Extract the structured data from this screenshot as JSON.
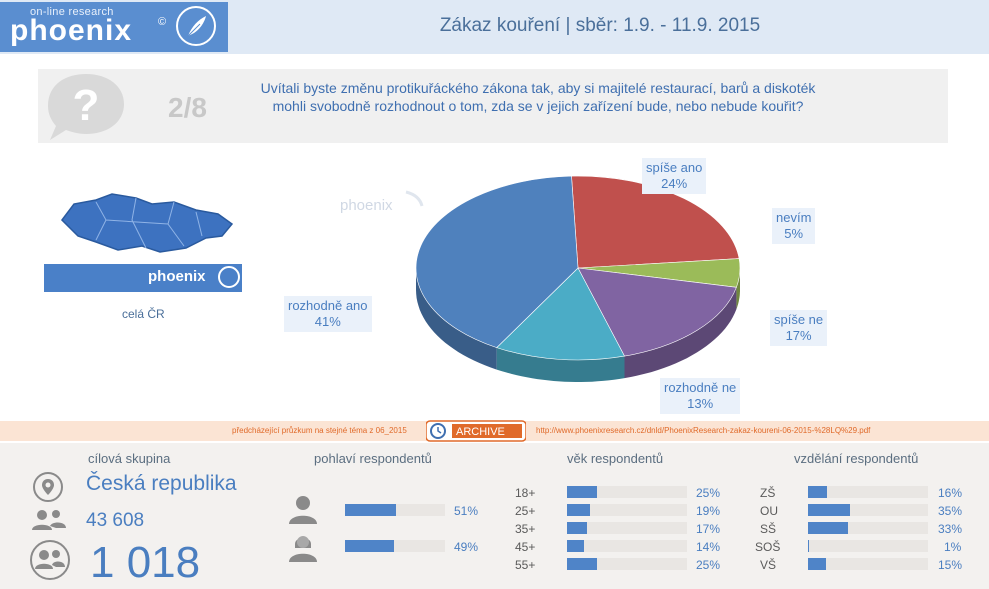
{
  "logo": {
    "small_text": "on-line research",
    "word": "phoenix",
    "mark": "©"
  },
  "title": "Zákaz kouření | sběr: 1.9. - 11.9. 2015",
  "question": {
    "number": "2/8",
    "text": "Uvítali byste změnu protikuřáckého zákona tak, aby si majitelé restaurací, barů a diskoték mohli  svobodně rozhodnout o tom, zda se v jejich zařízení bude, nebo nebude kouřit?"
  },
  "region": {
    "banner_text": "phoenix",
    "label": "celá ČR"
  },
  "chart_data": {
    "type": "pie",
    "categories": [
      "spíše ano",
      "nevím",
      "spíše ne",
      "rozhodně ne",
      "rozhodně ano"
    ],
    "values": [
      24,
      5,
      17,
      13,
      41
    ],
    "value_labels": [
      "24%",
      "5%",
      "17%",
      "13%",
      "41%"
    ],
    "colors": [
      "#c0504d",
      "#9bbb59",
      "#8064a2",
      "#4bacc6",
      "#4f81bd"
    ]
  },
  "archive": {
    "previous": "předcházející průzkum na stejné téma z 06_2015",
    "label": "ARCHIVE",
    "url": "http://www.phoenixresearch.cz/dnld/PhoenixResearch-zakaz-koureni-06-2015-%28LQ%29.pdf"
  },
  "target": {
    "title": "cílová skupina",
    "country": "Česká republika",
    "count": "43 608",
    "respondents": "1 018"
  },
  "gender": {
    "title": "pohlaví respondentů",
    "rows": [
      {
        "icon": "male-icon",
        "value": 51,
        "pct": "51%"
      },
      {
        "icon": "female-icon",
        "value": 49,
        "pct": "49%"
      }
    ]
  },
  "age": {
    "title": "věk respondentů",
    "rows": [
      {
        "label": "18+",
        "value": 25,
        "pct": "25%"
      },
      {
        "label": "25+",
        "value": 19,
        "pct": "19%"
      },
      {
        "label": "35+",
        "value": 17,
        "pct": "17%"
      },
      {
        "label": "45+",
        "value": 14,
        "pct": "14%"
      },
      {
        "label": "55+",
        "value": 25,
        "pct": "25%"
      }
    ]
  },
  "education": {
    "title": "vzdělání respondentů",
    "rows": [
      {
        "label": "ZŠ",
        "value": 16,
        "pct": "16%"
      },
      {
        "label": "OU",
        "value": 35,
        "pct": "35%"
      },
      {
        "label": "SŠ",
        "value": 33,
        "pct": "33%"
      },
      {
        "label": "SOŠ",
        "value": 1,
        "pct": "1%"
      },
      {
        "label": "VŠ",
        "value": 15,
        "pct": "15%"
      }
    ]
  }
}
